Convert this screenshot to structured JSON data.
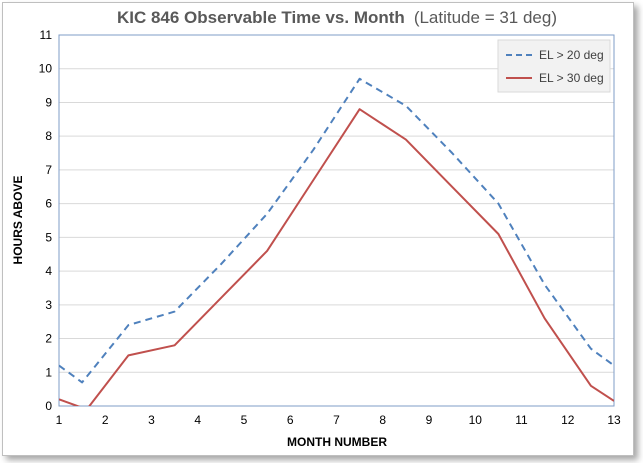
{
  "chart_data": {
    "type": "line",
    "title": "KIC 846 Observable Time vs. Month",
    "subtitle": "(Latitude = 31 deg)",
    "xlabel": "MONTH NUMBER",
    "ylabel": "HOURS ABOVE",
    "xlim": [
      1,
      13
    ],
    "ylim": [
      0,
      11
    ],
    "x_ticks": [
      "1",
      "2",
      "3",
      "4",
      "5",
      "6",
      "7",
      "8",
      "9",
      "10",
      "11",
      "12",
      "13"
    ],
    "y_ticks": [
      "0",
      "1",
      "2",
      "3",
      "4",
      "5",
      "6",
      "7",
      "8",
      "9",
      "10",
      "11"
    ],
    "grid": "horizontal",
    "legend_position": "top-right",
    "series": [
      {
        "name": "EL > 20 deg",
        "color": "#4f81bd",
        "style": "dashed",
        "x": [
          1,
          1.5,
          2.5,
          3.5,
          4.5,
          5.5,
          6.5,
          7.5,
          8.5,
          9.5,
          10.5,
          11.5,
          12.5,
          13
        ],
        "y": [
          1.2,
          0.7,
          2.4,
          2.8,
          4.2,
          5.7,
          7.6,
          9.7,
          8.9,
          7.5,
          6.0,
          3.6,
          1.7,
          1.2
        ]
      },
      {
        "name": "EL > 30 deg",
        "color": "#c0504d",
        "style": "solid",
        "x": [
          1,
          1.6,
          2.5,
          3.5,
          4.5,
          5.5,
          6.5,
          7.5,
          8.5,
          9.5,
          10.5,
          11.5,
          12.5,
          13
        ],
        "y": [
          0.2,
          -0.1,
          1.5,
          1.8,
          3.2,
          4.6,
          6.7,
          8.8,
          7.9,
          6.5,
          5.1,
          2.6,
          0.6,
          0.15
        ]
      }
    ]
  }
}
